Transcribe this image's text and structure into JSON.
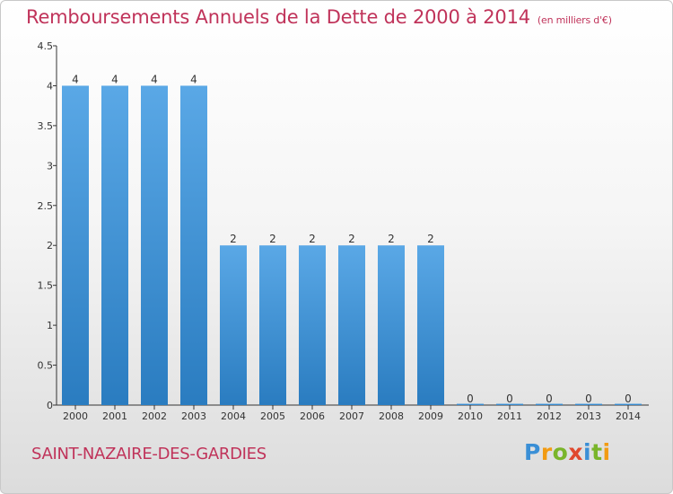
{
  "title": "Remboursements Annuels de la Dette de 2000 à 2014",
  "unit": "(en milliers d'€)",
  "commune": "SAINT-NAZAIRE-DES-GARDIES",
  "logo": {
    "text": "Proxiti",
    "letters": [
      {
        "ch": "P",
        "color": "#3a8fd6"
      },
      {
        "ch": "r",
        "color": "#f29b12"
      },
      {
        "ch": "o",
        "color": "#7ab52a"
      },
      {
        "ch": "x",
        "color": "#e0492e"
      },
      {
        "ch": "i",
        "color": "#3a8fd6"
      },
      {
        "ch": "t",
        "color": "#7ab52a"
      },
      {
        "ch": "i",
        "color": "#f29b12"
      }
    ]
  },
  "colors": {
    "accent": "#c0335a",
    "bar_top": "#5aa8e6",
    "bar_bottom": "#2a7cc0"
  },
  "chart_data": {
    "type": "bar",
    "categories": [
      "2000",
      "2001",
      "2002",
      "2003",
      "2004",
      "2005",
      "2006",
      "2007",
      "2008",
      "2009",
      "2010",
      "2011",
      "2012",
      "2013",
      "2014"
    ],
    "values": [
      4,
      4,
      4,
      4,
      2,
      2,
      2,
      2,
      2,
      2,
      0,
      0,
      0,
      0,
      0
    ],
    "data_labels": [
      "4",
      "4",
      "4",
      "4",
      "2",
      "2",
      "2",
      "2",
      "2",
      "2",
      "0",
      "0",
      "0",
      "0",
      "0"
    ],
    "yticks": [
      0,
      0.5,
      1,
      1.5,
      2,
      2.5,
      3,
      3.5,
      4,
      4.5
    ],
    "ytick_labels": [
      "0",
      "0.5",
      "1",
      "1.5",
      "2",
      "2.5",
      "3",
      "3.5",
      "4",
      "4.5"
    ],
    "ylim": [
      0,
      4.5
    ],
    "grid": false
  }
}
